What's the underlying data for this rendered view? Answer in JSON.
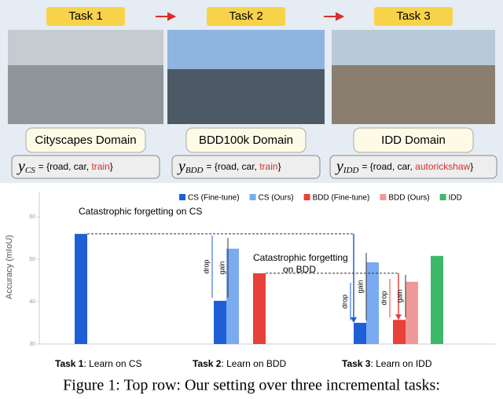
{
  "tasks": [
    {
      "title": "Task 1",
      "domain": "Cityscapes Domain",
      "label_set": {
        "symbol": "y",
        "subscript": "CS",
        "prefix": "= {road, car, ",
        "highlight": "train",
        "suffix": "}"
      }
    },
    {
      "title": "Task 2",
      "domain": "BDD100k Domain",
      "label_set": {
        "symbol": "y",
        "subscript": "BDD",
        "prefix": "= {road, car, ",
        "highlight": "train",
        "suffix": "}"
      }
    },
    {
      "title": "Task 3",
      "domain": "IDD Domain",
      "label_set": {
        "symbol": "y",
        "subscript": "IDD",
        "prefix": "= {road, car, ",
        "highlight": "autorickshaw",
        "suffix": "}"
      }
    }
  ],
  "chart_data": {
    "type": "bar",
    "y_label": "Accuracy (mIoU)",
    "categories": [
      "Task 1",
      "Task 2",
      "Task 3"
    ],
    "x_sublabels": [
      ": Learn on CS",
      ": Learn on BDD",
      ": Learn on IDD"
    ],
    "series": [
      {
        "name": "CS (Fine-tune)",
        "color": "#1f5fd6",
        "values": [
          56,
          40.2,
          35
        ]
      },
      {
        "name": "CS (Ours)",
        "color": "#7aaaf0",
        "values": [
          null,
          52.5,
          49.3
        ]
      },
      {
        "name": "BDD (Fine-tune)",
        "color": "#e8403a",
        "values": [
          null,
          46.7,
          35.7
        ]
      },
      {
        "name": "BDD (Ours)",
        "color": "#ef9a9a",
        "values": [
          null,
          null,
          44.7
        ]
      },
      {
        "name": "IDD",
        "color": "#3cb86a",
        "values": [
          null,
          null,
          50.8
        ]
      }
    ],
    "ylim": [
      30,
      63
    ],
    "yticks": [
      30,
      40,
      50,
      60
    ],
    "annotations": {
      "forgetting_cs": "Catastrophic forgetting on CS",
      "forgetting_bdd_1": "Catastrophic forgetting",
      "forgetting_bdd_2": "on BDD",
      "drop": "drop",
      "gain": "gain"
    }
  },
  "caption": "Figure 1: Top row: Our setting over three incremental tasks:"
}
